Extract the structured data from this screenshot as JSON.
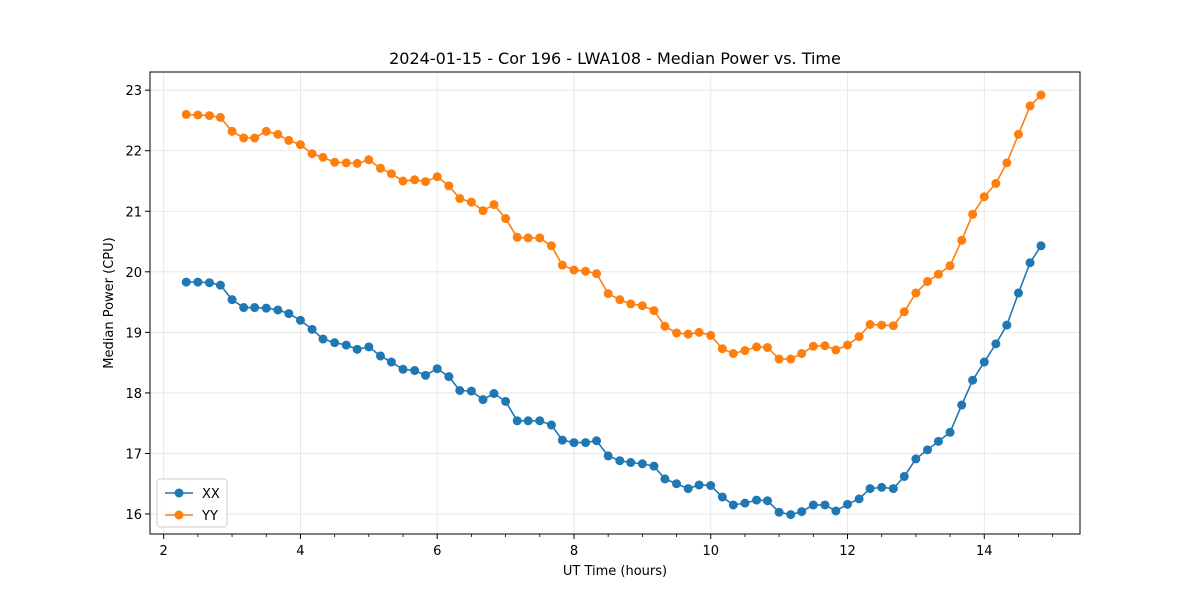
{
  "chart_data": {
    "type": "line",
    "title": "2024-01-15 - Cor 196 - LWA108 - Median Power vs. Time",
    "xlabel": "UT Time (hours)",
    "ylabel": "Median Power (CPU)",
    "xlim": [
      1.8,
      15.4
    ],
    "ylim": [
      15.67,
      23.3
    ],
    "xticks": [
      2,
      4,
      6,
      8,
      10,
      12,
      14
    ],
    "yticks": [
      16,
      17,
      18,
      19,
      20,
      21,
      22,
      23
    ],
    "grid": true,
    "legend_position": "lower-left",
    "x": [
      2.33,
      2.5,
      2.67,
      2.83,
      3.0,
      3.17,
      3.33,
      3.5,
      3.67,
      3.83,
      4.0,
      4.17,
      4.33,
      4.5,
      4.67,
      4.83,
      5.0,
      5.17,
      5.33,
      5.5,
      5.67,
      5.83,
      6.0,
      6.17,
      6.33,
      6.5,
      6.67,
      6.83,
      7.0,
      7.17,
      7.33,
      7.5,
      7.67,
      7.83,
      8.0,
      8.17,
      8.33,
      8.5,
      8.67,
      8.83,
      9.0,
      9.17,
      9.33,
      9.5,
      9.67,
      9.83,
      10.0,
      10.17,
      10.33,
      10.5,
      10.67,
      10.83,
      11.0,
      11.17,
      11.33,
      11.5,
      11.67,
      11.83,
      12.0,
      12.17,
      12.33,
      12.5,
      12.67,
      12.83,
      13.0,
      13.17,
      13.33,
      13.5,
      13.67,
      13.83,
      14.0,
      14.17,
      14.33,
      14.5,
      14.67,
      14.83
    ],
    "series": [
      {
        "name": "XX",
        "color": "#1f77b4",
        "values": [
          19.83,
          19.83,
          19.82,
          19.78,
          19.54,
          19.41,
          19.41,
          19.4,
          19.37,
          19.31,
          19.2,
          19.05,
          18.89,
          18.83,
          18.79,
          18.72,
          18.76,
          18.61,
          18.51,
          18.39,
          18.37,
          18.29,
          18.4,
          18.27,
          18.04,
          18.03,
          17.89,
          17.99,
          17.86,
          17.54,
          17.54,
          17.54,
          17.47,
          17.22,
          17.18,
          17.18,
          17.21,
          16.96,
          16.88,
          16.85,
          16.83,
          16.79,
          16.58,
          16.5,
          16.42,
          16.48,
          16.47,
          16.28,
          16.15,
          16.18,
          16.23,
          16.22,
          16.03,
          15.99,
          16.04,
          16.15,
          16.15,
          16.05,
          16.16,
          16.25,
          16.42,
          16.44,
          16.42,
          16.62,
          16.91,
          17.06,
          17.2,
          17.35,
          17.8,
          18.21,
          18.51,
          18.81,
          19.12,
          19.65,
          20.15,
          20.43
        ]
      },
      {
        "name": "YY",
        "color": "#ff7f0e",
        "values": [
          22.6,
          22.59,
          22.58,
          22.55,
          22.32,
          22.21,
          22.21,
          22.32,
          22.27,
          22.17,
          22.1,
          21.95,
          21.89,
          21.81,
          21.8,
          21.79,
          21.85,
          21.71,
          21.62,
          21.5,
          21.52,
          21.49,
          21.57,
          21.42,
          21.21,
          21.15,
          21.01,
          21.11,
          20.88,
          20.57,
          20.56,
          20.56,
          20.43,
          20.11,
          20.03,
          20.01,
          19.97,
          19.64,
          19.54,
          19.47,
          19.44,
          19.36,
          19.1,
          18.99,
          18.97,
          19.0,
          18.95,
          18.73,
          18.65,
          18.7,
          18.76,
          18.75,
          18.56,
          18.56,
          18.65,
          18.77,
          18.78,
          18.71,
          18.79,
          18.93,
          19.13,
          19.12,
          19.11,
          19.34,
          19.65,
          19.84,
          19.96,
          20.1,
          20.52,
          20.95,
          21.24,
          21.46,
          21.8,
          22.27,
          22.74,
          22.92
        ]
      }
    ]
  }
}
